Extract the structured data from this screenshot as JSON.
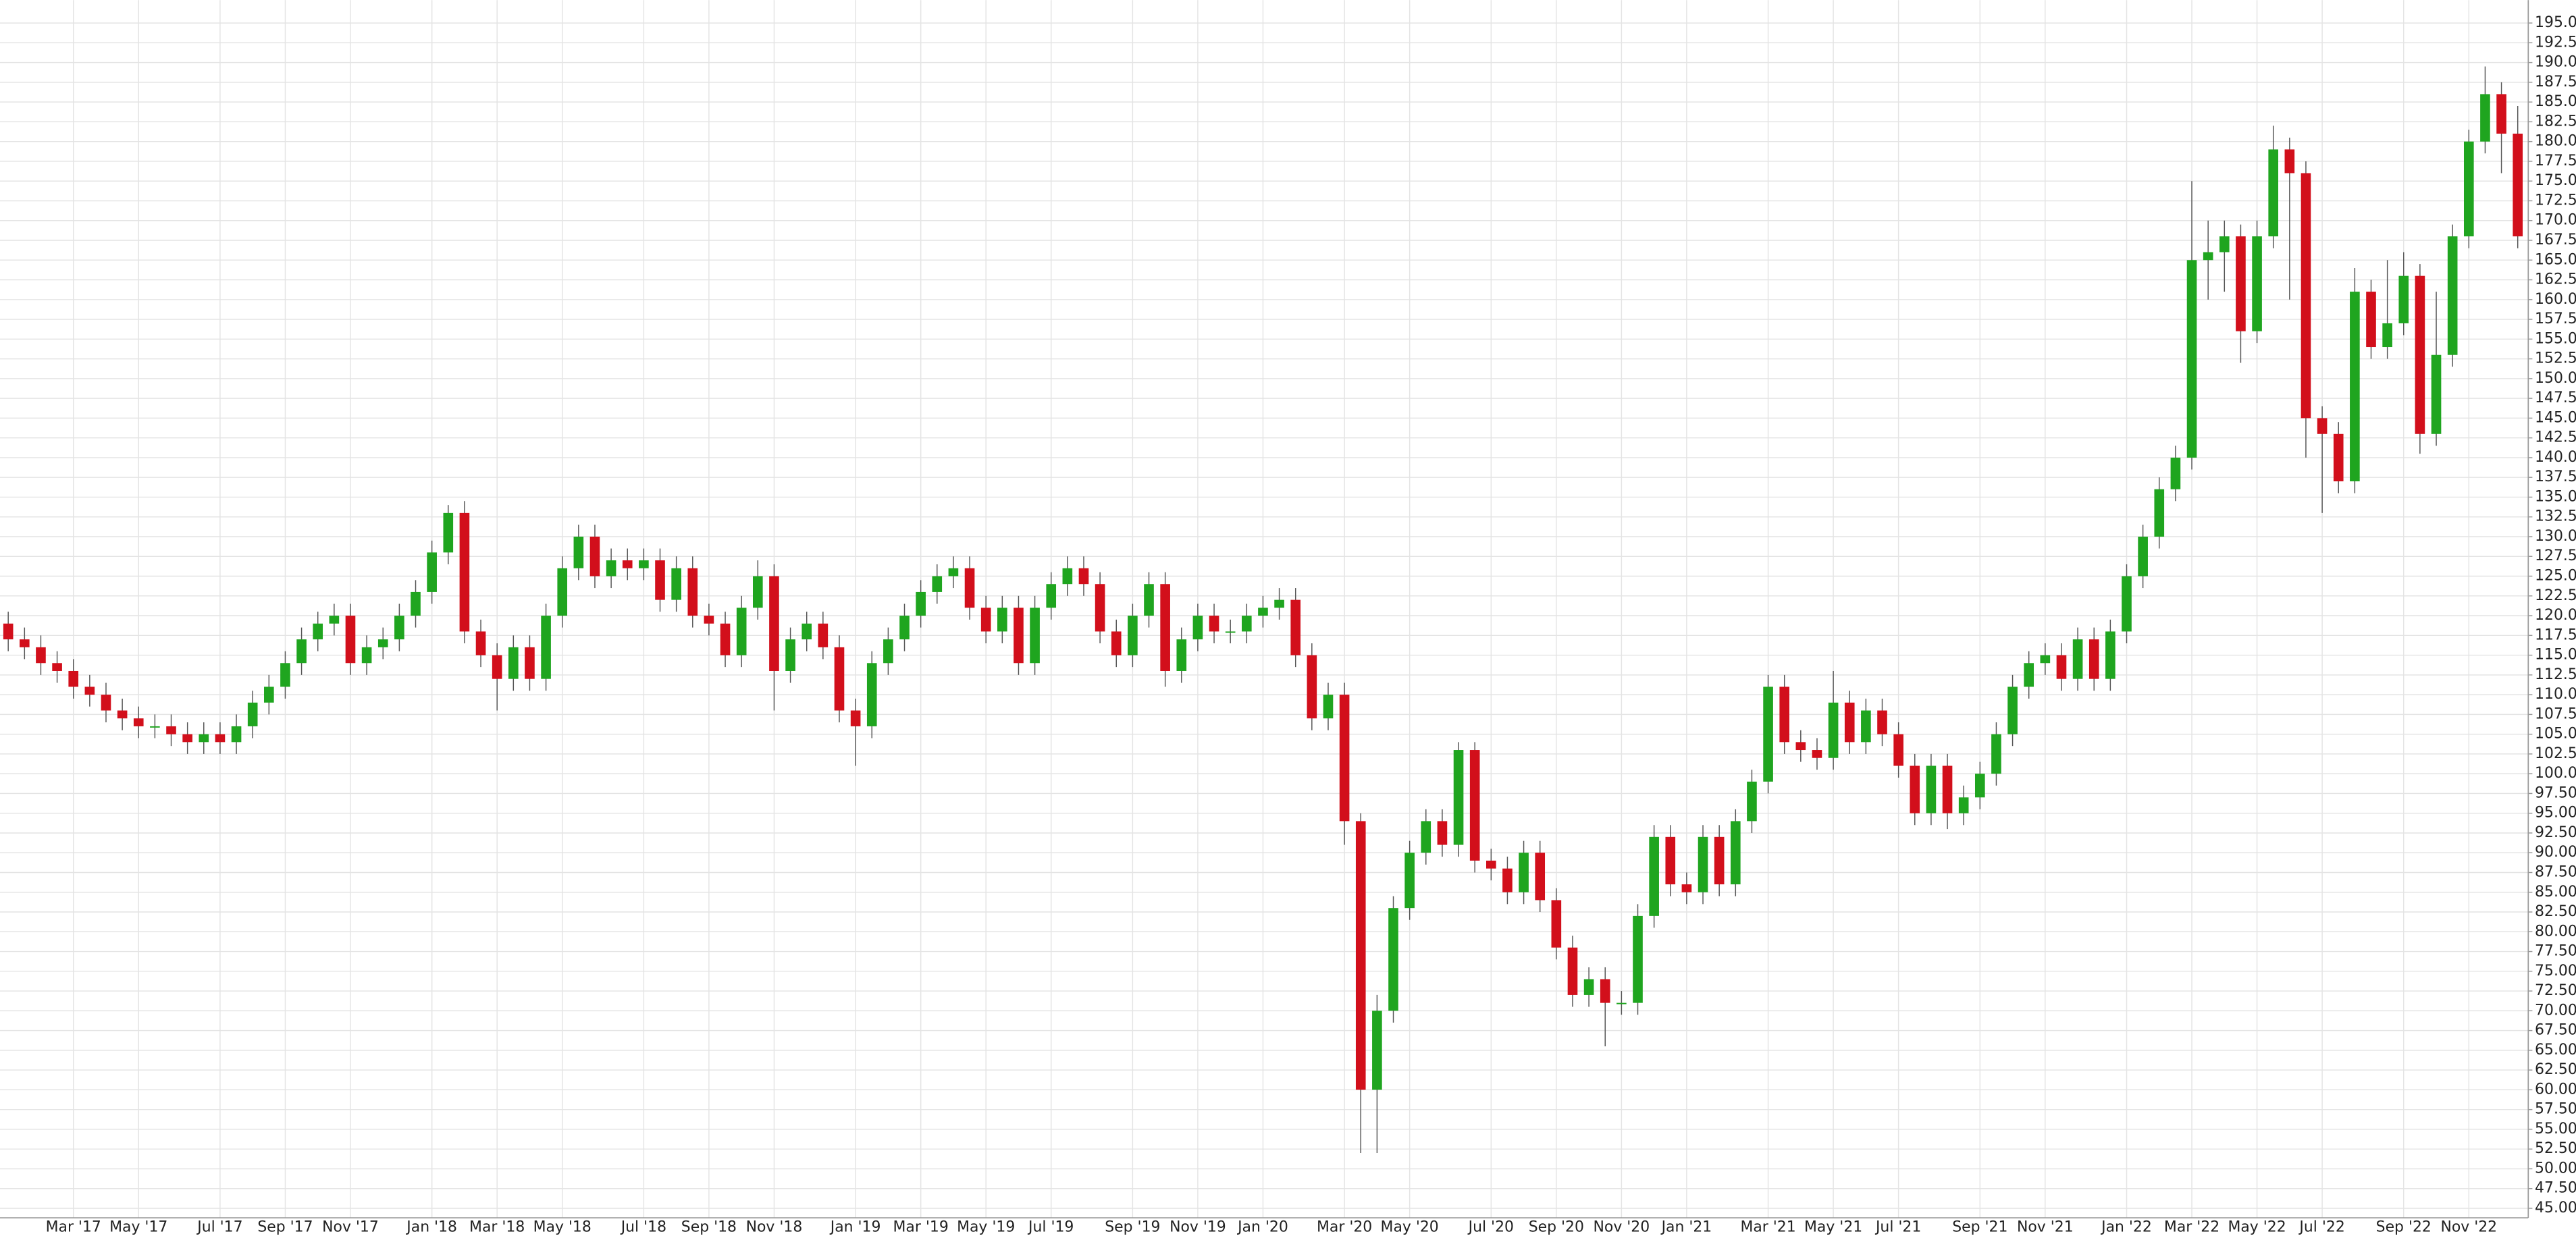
{
  "chart_data": {
    "type": "candlestick",
    "up_color": "#1fa51f",
    "down_color": "#d20f1b",
    "grid": true,
    "ylim": [
      43.8,
      197.9
    ],
    "yticks": [
      {
        "value": 45,
        "label": "45.00"
      },
      {
        "value": 47.5,
        "label": "47.50"
      },
      {
        "value": 50,
        "label": "50.00"
      },
      {
        "value": 52.5,
        "label": "52.50"
      },
      {
        "value": 55,
        "label": "55.00"
      },
      {
        "value": 57.5,
        "label": "57.50"
      },
      {
        "value": 60,
        "label": "60.00"
      },
      {
        "value": 62.5,
        "label": "62.50"
      },
      {
        "value": 65,
        "label": "65.00"
      },
      {
        "value": 67.5,
        "label": "67.50"
      },
      {
        "value": 70,
        "label": "70.00"
      },
      {
        "value": 72.5,
        "label": "72.50"
      },
      {
        "value": 75,
        "label": "75.00"
      },
      {
        "value": 77.5,
        "label": "77.50"
      },
      {
        "value": 80,
        "label": "80.00"
      },
      {
        "value": 82.5,
        "label": "82.50"
      },
      {
        "value": 85,
        "label": "85.00"
      },
      {
        "value": 87.5,
        "label": "87.50"
      },
      {
        "value": 90,
        "label": "90.00"
      },
      {
        "value": 92.5,
        "label": "92.50"
      },
      {
        "value": 95,
        "label": "95.00"
      },
      {
        "value": 97.5,
        "label": "97.50"
      },
      {
        "value": 100,
        "label": "100.00"
      },
      {
        "value": 102.5,
        "label": "102.50"
      },
      {
        "value": 105,
        "label": "105.00"
      },
      {
        "value": 107.5,
        "label": "107.50"
      },
      {
        "value": 110,
        "label": "110.00"
      },
      {
        "value": 112.5,
        "label": "112.50"
      },
      {
        "value": 115,
        "label": "115.00"
      },
      {
        "value": 117.5,
        "label": "117.50"
      },
      {
        "value": 120,
        "label": "120.00"
      },
      {
        "value": 122.5,
        "label": "122.50"
      },
      {
        "value": 125,
        "label": "125.00"
      },
      {
        "value": 127.5,
        "label": "127.50"
      },
      {
        "value": 130,
        "label": "130.00"
      },
      {
        "value": 132.5,
        "label": "132.50"
      },
      {
        "value": 135,
        "label": "135.00"
      },
      {
        "value": 137.5,
        "label": "137.50"
      },
      {
        "value": 140,
        "label": "140.00"
      },
      {
        "value": 142.5,
        "label": "142.50"
      },
      {
        "value": 145,
        "label": "145.00"
      },
      {
        "value": 147.5,
        "label": "147.50"
      },
      {
        "value": 150,
        "label": "150.00"
      },
      {
        "value": 152.5,
        "label": "152.50"
      },
      {
        "value": 155,
        "label": "155.00"
      },
      {
        "value": 157.5,
        "label": "157.50"
      },
      {
        "value": 160,
        "label": "160.00"
      },
      {
        "value": 162.5,
        "label": "162.50"
      },
      {
        "value": 165,
        "label": "165.00"
      },
      {
        "value": 167.5,
        "label": "167.50"
      },
      {
        "value": 170,
        "label": "170.00"
      },
      {
        "value": 172.5,
        "label": "172.50"
      },
      {
        "value": 175,
        "label": "175.00"
      },
      {
        "value": 177.5,
        "label": "177.50"
      },
      {
        "value": 180,
        "label": "180.00"
      },
      {
        "value": 182.5,
        "label": "182.50"
      },
      {
        "value": 185,
        "label": "185.00"
      },
      {
        "value": 187.5,
        "label": "187.50"
      },
      {
        "value": 190,
        "label": "190.00"
      },
      {
        "value": 192.5,
        "label": "192.50"
      },
      {
        "value": 195,
        "label": "195.00"
      }
    ],
    "categories": [
      null,
      null,
      null,
      null,
      "Mar '17",
      null,
      null,
      null,
      "May '17",
      null,
      null,
      null,
      null,
      "Jul '17",
      null,
      null,
      null,
      "Sep '17",
      null,
      null,
      null,
      "Nov '17",
      null,
      null,
      null,
      null,
      "Jan '18",
      null,
      null,
      null,
      "Mar '18",
      null,
      null,
      null,
      "May '18",
      null,
      null,
      null,
      null,
      "Jul '18",
      null,
      null,
      null,
      "Sep '18",
      null,
      null,
      null,
      "Nov '18",
      null,
      null,
      null,
      null,
      "Jan '19",
      null,
      null,
      null,
      "Mar '19",
      null,
      null,
      null,
      "May '19",
      null,
      null,
      null,
      "Jul '19",
      null,
      null,
      null,
      null,
      "Sep '19",
      null,
      null,
      null,
      "Nov '19",
      null,
      null,
      null,
      "Jan '20",
      null,
      null,
      null,
      null,
      "Mar '20",
      null,
      null,
      null,
      "May '20",
      null,
      null,
      null,
      null,
      "Jul '20",
      null,
      null,
      null,
      "Sep '20",
      null,
      null,
      null,
      "Nov '20",
      null,
      null,
      null,
      "Jan '21",
      null,
      null,
      null,
      null,
      "Mar '21",
      null,
      null,
      null,
      "May '21",
      null,
      null,
      null,
      "Jul '21",
      null,
      null,
      null,
      null,
      "Sep '21",
      null,
      null,
      null,
      "Nov '21",
      null,
      null,
      null,
      null,
      "Jan '22",
      null,
      null,
      null,
      "Mar '22",
      null,
      null,
      null,
      "May '22",
      null,
      null,
      null,
      "Jul '22",
      null,
      null,
      null,
      null,
      "Sep '22",
      null,
      null,
      null,
      "Nov '22",
      null,
      null,
      null
    ],
    "open": [
      119,
      117,
      116,
      114,
      113,
      111,
      110,
      108,
      107,
      106,
      106,
      105,
      104,
      105,
      104,
      106,
      109,
      111,
      114,
      117,
      119,
      120,
      114,
      116,
      117,
      120,
      123,
      128,
      133,
      118,
      115,
      112,
      116,
      112,
      120,
      126,
      130,
      125,
      127,
      126,
      127,
      122,
      126,
      120,
      119,
      115,
      121,
      125,
      113,
      117,
      119,
      116,
      108,
      106,
      114,
      117,
      120,
      123,
      125,
      126,
      121,
      118,
      121,
      114,
      121,
      124,
      126,
      124,
      118,
      115,
      120,
      124,
      113,
      117,
      120,
      118,
      118,
      120,
      121,
      122,
      115,
      107,
      110,
      94,
      60,
      70,
      83,
      90,
      94,
      91,
      103,
      89,
      88,
      85,
      90,
      84,
      78,
      72,
      74,
      71,
      71,
      82,
      92,
      86,
      85,
      92,
      86,
      94,
      99,
      111,
      104,
      103,
      102,
      109,
      104,
      108,
      105,
      101,
      95,
      101,
      95,
      97,
      100,
      105,
      111,
      114,
      115,
      112,
      117,
      112,
      118,
      125,
      130,
      136,
      140,
      165,
      166,
      168,
      156,
      168,
      179,
      176,
      145,
      143,
      137,
      161,
      154,
      157,
      163,
      143,
      153,
      168,
      180,
      186,
      181
    ],
    "high": [
      120.5,
      118.5,
      117.5,
      115.5,
      114.5,
      112.5,
      111.5,
      109.5,
      108.5,
      107.5,
      107.5,
      106.5,
      106.5,
      106.5,
      107.5,
      110.5,
      112.5,
      115.5,
      118.5,
      120.5,
      121.5,
      121.5,
      117.5,
      118.5,
      121.5,
      124.5,
      129.5,
      134,
      134.5,
      119.5,
      116.5,
      117.5,
      117.5,
      121.5,
      127.5,
      131.5,
      131.5,
      128.5,
      128.5,
      128.5,
      128.5,
      127.5,
      127.5,
      121.5,
      120.5,
      122.5,
      127,
      126.5,
      118.5,
      120.5,
      120.5,
      117.5,
      109.5,
      115.5,
      118.5,
      121.5,
      124.5,
      126.5,
      127.5,
      127.5,
      122.5,
      122.5,
      122.5,
      122.5,
      125.5,
      127.5,
      127.5,
      125.5,
      119.5,
      121.5,
      125.5,
      125.5,
      118.5,
      121.5,
      121.5,
      119.5,
      121.5,
      122.5,
      123.5,
      123.5,
      116.5,
      111.5,
      111.5,
      95,
      72,
      84.5,
      91.5,
      95.5,
      95.5,
      104,
      104,
      90.5,
      89.5,
      91.5,
      91.5,
      85.5,
      79.5,
      75.5,
      75.5,
      72.5,
      83.5,
      93.5,
      93.5,
      87.5,
      93.5,
      93.5,
      95.5,
      100.5,
      112.5,
      112.5,
      105.5,
      104.5,
      113,
      110.5,
      109.5,
      109.5,
      106.5,
      102.5,
      102.5,
      102.5,
      98.5,
      101.5,
      106.5,
      112.5,
      115.5,
      116.5,
      116.5,
      118.5,
      118.5,
      119.5,
      126.5,
      131.5,
      137.5,
      141.5,
      175,
      170,
      170,
      169.5,
      170,
      182,
      180.5,
      177.5,
      146.5,
      144.5,
      164,
      162.5,
      165,
      166,
      164.5,
      161,
      169.5,
      181.5,
      189.5,
      187.5,
      184.5
    ],
    "low": [
      115.5,
      114.5,
      112.5,
      111.5,
      109.5,
      108.5,
      106.5,
      105.5,
      104.5,
      104.5,
      103.5,
      102.5,
      102.5,
      102.5,
      102.5,
      104.5,
      107.5,
      109.5,
      112.5,
      115.5,
      117.5,
      112.5,
      112.5,
      114.5,
      115.5,
      118.5,
      121.5,
      126.5,
      116.5,
      113.5,
      108,
      110.5,
      110.5,
      110.5,
      118.5,
      124.5,
      123.5,
      123.5,
      124.5,
      124.5,
      120.5,
      120.5,
      118.5,
      117.5,
      113.5,
      113.5,
      119.5,
      108,
      111.5,
      115.5,
      114.5,
      106.5,
      101,
      104.5,
      112.5,
      115.5,
      118.5,
      121.5,
      123.5,
      119.5,
      116.5,
      116.5,
      112.5,
      112.5,
      119.5,
      122.5,
      122.5,
      116.5,
      113.5,
      113.5,
      118.5,
      111,
      111.5,
      115.5,
      116.5,
      116.5,
      116.5,
      118.5,
      119.5,
      113.5,
      105.5,
      105.5,
      91,
      52,
      52,
      68.5,
      81.5,
      88.5,
      89.5,
      89.5,
      87.5,
      86.5,
      83.5,
      83.5,
      82.5,
      76.5,
      70.5,
      70.5,
      65.5,
      69.5,
      69.5,
      80.5,
      84.5,
      83.5,
      83.5,
      84.5,
      84.5,
      92.5,
      97.5,
      102.5,
      101.5,
      100.5,
      100.5,
      102.5,
      102.5,
      103.5,
      99.5,
      93.5,
      93.5,
      93,
      93.5,
      95.5,
      98.5,
      103.5,
      109.5,
      112.5,
      110.5,
      110.5,
      110.5,
      110.5,
      116.5,
      123.5,
      128.5,
      134.5,
      138.5,
      160,
      161,
      152,
      154.5,
      166.5,
      160,
      140,
      133,
      135.5,
      135.5,
      152.5,
      152.5,
      155.5,
      140.5,
      141.5,
      151.5,
      166.5,
      178.5,
      176,
      166.5
    ],
    "close": [
      117,
      116,
      114,
      113,
      111,
      110,
      108,
      107,
      106,
      106,
      105,
      104,
      105,
      104,
      106,
      109,
      111,
      114,
      117,
      119,
      120,
      114,
      116,
      117,
      120,
      123,
      128,
      133,
      118,
      115,
      112,
      116,
      112,
      120,
      126,
      130,
      125,
      127,
      126,
      127,
      122,
      126,
      120,
      119,
      115,
      121,
      125,
      113,
      117,
      119,
      116,
      108,
      106,
      114,
      117,
      120,
      123,
      125,
      126,
      121,
      118,
      121,
      114,
      121,
      124,
      126,
      124,
      118,
      115,
      120,
      124,
      113,
      117,
      120,
      118,
      118,
      120,
      121,
      122,
      115,
      107,
      110,
      94,
      60,
      70,
      83,
      90,
      94,
      91,
      103,
      89,
      88,
      85,
      90,
      84,
      78,
      72,
      74,
      71,
      71,
      82,
      92,
      86,
      85,
      92,
      86,
      94,
      99,
      111,
      104,
      103,
      102,
      109,
      104,
      108,
      105,
      101,
      95,
      101,
      95,
      97,
      100,
      105,
      111,
      114,
      115,
      112,
      117,
      112,
      118,
      125,
      130,
      136,
      140,
      165,
      166,
      168,
      156,
      168,
      179,
      176,
      145,
      143,
      137,
      161,
      154,
      157,
      163,
      143,
      153,
      168,
      180,
      186,
      181,
      168
    ]
  }
}
